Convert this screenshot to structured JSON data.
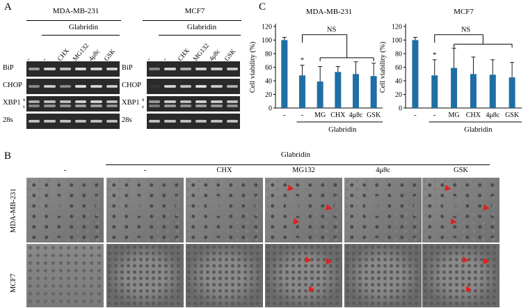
{
  "panel_letters": {
    "a": "A",
    "b": "B",
    "c": "C"
  },
  "western": {
    "cell_lines": [
      "MDA-MB-231",
      "MCF7"
    ],
    "treatment": "Glabridin",
    "mda_lanes": [
      "-",
      "-",
      "CHX",
      "MG132",
      "4μ8c",
      "GSK"
    ],
    "mcf_lanes": [
      "-",
      "-",
      "CHX",
      "MG132",
      "4μ8c",
      "GSK"
    ],
    "genes": [
      "BiP",
      "CHOP",
      "XBP1",
      "28s"
    ],
    "xbp1_sup": "u",
    "xbp1_sub": "s",
    "band_intensity_mda": {
      "BiP": [
        0.6,
        0.9,
        0.8,
        0.95,
        0.9,
        0.9
      ],
      "CHOP": [
        0.5,
        0.85,
        0.5,
        0.95,
        0.9,
        0.85
      ],
      "XBP1": [
        0.7,
        0.8,
        0.8,
        0.9,
        0.9,
        0.8
      ],
      "28s": [
        0.8,
        0.8,
        0.8,
        0.8,
        0.8,
        0.8
      ]
    },
    "band_intensity_mcf": {
      "BiP": [
        0.5,
        0.9,
        0.7,
        0.9,
        0.85,
        0.85
      ],
      "CHOP": [
        0.05,
        0.9,
        0.8,
        0.95,
        0.85,
        0.7
      ],
      "XBP1": [
        0.6,
        0.85,
        0.8,
        0.9,
        0.85,
        0.8
      ],
      "28s": [
        0.8,
        0.8,
        0.8,
        0.8,
        0.8,
        0.8
      ]
    }
  },
  "chart_data": [
    {
      "type": "bar",
      "title": "MDA-MB-231",
      "ylabel": "Cell viability (%)",
      "xlabel": "Glabridin",
      "ylim": [
        0,
        120
      ],
      "yticks": [
        0,
        20,
        40,
        60,
        80,
        100,
        120
      ],
      "categories": [
        "-",
        "-",
        "MG",
        "CHX",
        "4μ8c",
        "GSK"
      ],
      "values": [
        100,
        48,
        39,
        53,
        50,
        47
      ],
      "errors": [
        4,
        15,
        22,
        8,
        18,
        19
      ],
      "significance": {
        "star_on_index": 1,
        "star_text": "*",
        "ns_text": "NS"
      },
      "color": "#1f6ea5"
    },
    {
      "type": "bar",
      "title": "MCF7",
      "ylabel": "Cell viability (%)",
      "xlabel": "Glabridin",
      "ylim": [
        0,
        120
      ],
      "yticks": [
        0,
        20,
        40,
        60,
        80,
        100,
        120
      ],
      "categories": [
        "-",
        "-",
        "MG",
        "CHX",
        "4μ8c",
        "GSK"
      ],
      "values": [
        100,
        48,
        59,
        50,
        49,
        45
      ],
      "errors": [
        4,
        23,
        29,
        25,
        22,
        22
      ],
      "significance": {
        "star_on_index": 1,
        "star_text": "*",
        "ns_text": "NS"
      },
      "color": "#1f6ea5"
    }
  ],
  "microscopy": {
    "treatment": "Glabridin",
    "conditions": [
      "-",
      "-",
      "CHX",
      "MG132",
      "4μ8c",
      "GSK"
    ],
    "rows": [
      "MDA-MB-231",
      "MCF7"
    ]
  }
}
